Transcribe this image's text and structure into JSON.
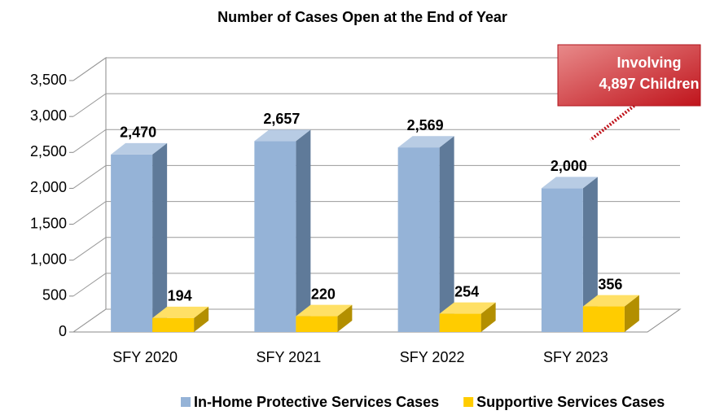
{
  "chart_data": {
    "type": "bar3d",
    "title": "Number of Cases Open at the End of Year",
    "categories": [
      "SFY 2020",
      "SFY 2021",
      "SFY 2022",
      "SFY 2023"
    ],
    "series": [
      {
        "name": "In-Home Protective Services Cases",
        "color": "#95b3d7",
        "values": [
          2470,
          2657,
          2569,
          2000
        ],
        "value_labels": [
          "2,470",
          "2,657",
          "2,569",
          "2,000"
        ]
      },
      {
        "name": "Supportive Services Cases",
        "color": "#ffcc00",
        "values": [
          194,
          220,
          254,
          356
        ]
      }
    ],
    "ylim": [
      0,
      3500
    ],
    "yticks": [
      0,
      500,
      {
        "value": 1000,
        "label": "1,000"
      },
      {
        "value": 1500,
        "label": "1,500"
      },
      {
        "value": 2000,
        "label": "2,000"
      },
      {
        "value": 2500,
        "label": "2,500"
      },
      {
        "value": 3000,
        "label": "3,000"
      },
      {
        "value": 3500,
        "label": "3,500"
      }
    ],
    "grid": true,
    "annotation": [
      "Involving",
      "4,897 Children"
    ],
    "legend": "bottom"
  }
}
